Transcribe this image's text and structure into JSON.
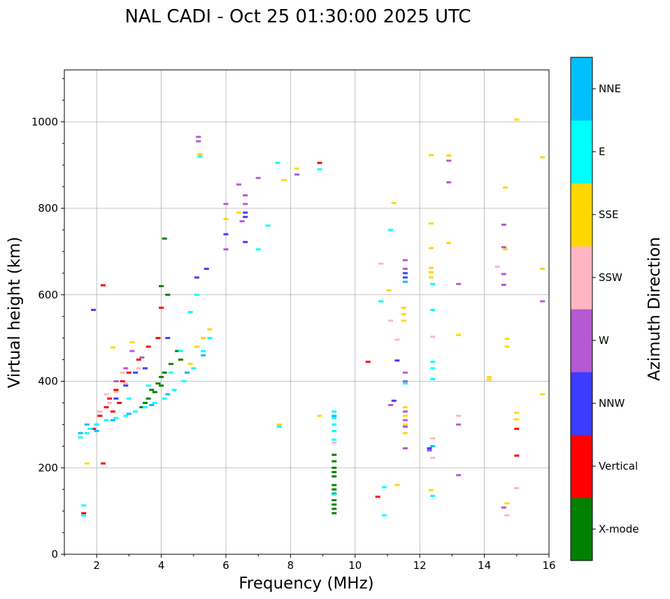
{
  "chart_data": {
    "type": "scatter",
    "title": "NAL CADI - Oct 25 01:30:00 2025 UTC",
    "xlabel": "Frequency (MHz)",
    "ylabel": "Virtual height (km)",
    "xlim": [
      1,
      16
    ],
    "ylim": [
      0,
      1120
    ],
    "x_ticks": [
      2,
      4,
      6,
      8,
      10,
      12,
      14,
      16
    ],
    "y_ticks": [
      0,
      200,
      400,
      600,
      800,
      1000
    ],
    "x_tick_labels": [
      "2",
      "4",
      "6",
      "8",
      "10",
      "12",
      "14",
      "16"
    ],
    "y_tick_labels": [
      "0",
      "200",
      "400",
      "600",
      "800",
      "1000"
    ],
    "grid": true,
    "colorbar": {
      "label": "Azimuth Direction",
      "categories": [
        "X-mode",
        "Vertical",
        "NNW",
        "W",
        "SSW",
        "SSE",
        "E",
        "NNE"
      ],
      "colors": [
        "#008000",
        "#ff0000",
        "#3c3cff",
        "#b45ad2",
        "#ffb6c1",
        "#ffd700",
        "#00ffff",
        "#00bfff"
      ]
    },
    "series": [
      {
        "name": "X-mode",
        "points": [
          [
            9.35,
            95
          ],
          [
            9.35,
            105
          ],
          [
            9.35,
            115
          ],
          [
            9.35,
            125
          ],
          [
            9.35,
            140
          ],
          [
            9.35,
            150
          ],
          [
            9.35,
            160
          ],
          [
            9.35,
            180
          ],
          [
            9.35,
            190
          ],
          [
            9.35,
            200
          ],
          [
            9.35,
            215
          ],
          [
            9.35,
            230
          ],
          [
            3.5,
            350
          ],
          [
            3.6,
            360
          ],
          [
            3.8,
            375
          ],
          [
            4.0,
            390
          ],
          [
            4.0,
            410
          ],
          [
            4.1,
            420
          ],
          [
            4.3,
            440
          ],
          [
            4.2,
            600
          ],
          [
            4.1,
            730
          ],
          [
            4.0,
            620
          ],
          [
            4.5,
            470
          ],
          [
            4.6,
            450
          ],
          [
            4.8,
            420
          ],
          [
            3.4,
            340
          ],
          [
            3.7,
            380
          ],
          [
            3.9,
            395
          ]
        ]
      },
      {
        "name": "Vertical",
        "points": [
          [
            1.6,
            95
          ],
          [
            2.2,
            210
          ],
          [
            2.2,
            622
          ],
          [
            10.7,
            133
          ],
          [
            10.4,
            445
          ],
          [
            15.0,
            290
          ],
          [
            15.0,
            228
          ],
          [
            1.9,
            290
          ],
          [
            2.0,
            300
          ],
          [
            2.1,
            320
          ],
          [
            2.3,
            340
          ],
          [
            2.4,
            360
          ],
          [
            2.6,
            380
          ],
          [
            2.8,
            400
          ],
          [
            3.0,
            420
          ],
          [
            3.3,
            450
          ],
          [
            3.6,
            480
          ],
          [
            3.9,
            500
          ],
          [
            2.5,
            330
          ],
          [
            2.7,
            350
          ],
          [
            4.0,
            570
          ],
          [
            8.9,
            905
          ]
        ]
      },
      {
        "name": "NNW",
        "points": [
          [
            1.9,
            565
          ],
          [
            6.6,
            790
          ],
          [
            6.6,
            780
          ],
          [
            6.0,
            740
          ],
          [
            6.6,
            722
          ],
          [
            11.55,
            650
          ],
          [
            11.55,
            640
          ],
          [
            12.3,
            245
          ],
          [
            11.2,
            355
          ],
          [
            11.3,
            448
          ],
          [
            2.6,
            360
          ],
          [
            2.9,
            390
          ],
          [
            3.2,
            420
          ],
          [
            3.5,
            430
          ],
          [
            4.2,
            500
          ],
          [
            5.1,
            640
          ],
          [
            5.4,
            660
          ]
        ]
      },
      {
        "name": "W",
        "points": [
          [
            5.15,
            965
          ],
          [
            5.15,
            955
          ],
          [
            6.4,
            855
          ],
          [
            6.6,
            830
          ],
          [
            6.6,
            810
          ],
          [
            6.0,
            810
          ],
          [
            6.5,
            770
          ],
          [
            6.0,
            705
          ],
          [
            7.0,
            870
          ],
          [
            8.2,
            878
          ],
          [
            11.55,
            680
          ],
          [
            11.55,
            660
          ],
          [
            11.55,
            420
          ],
          [
            11.55,
            400
          ],
          [
            11.55,
            330
          ],
          [
            11.55,
            310
          ],
          [
            11.55,
            295
          ],
          [
            11.55,
            245
          ],
          [
            12.3,
            240
          ],
          [
            12.9,
            910
          ],
          [
            12.9,
            860
          ],
          [
            13.2,
            625
          ],
          [
            13.2,
            300
          ],
          [
            13.2,
            183
          ],
          [
            14.6,
            762
          ],
          [
            14.6,
            710
          ],
          [
            14.6,
            648
          ],
          [
            14.6,
            623
          ],
          [
            14.6,
            108
          ],
          [
            15.8,
            585
          ],
          [
            11.1,
            345
          ],
          [
            2.6,
            400
          ],
          [
            2.9,
            430
          ],
          [
            3.1,
            470
          ],
          [
            3.4,
            455
          ]
        ]
      },
      {
        "name": "SSW",
        "points": [
          [
            10.8,
            672
          ],
          [
            11.1,
            540
          ],
          [
            11.3,
            496
          ],
          [
            12.4,
            503
          ],
          [
            12.4,
            268
          ],
          [
            12.4,
            223
          ],
          [
            13.2,
            320
          ],
          [
            14.4,
            665
          ],
          [
            15.0,
            153
          ],
          [
            14.7,
            90
          ],
          [
            9.35,
            258
          ],
          [
            2.1,
            330
          ],
          [
            2.4,
            350
          ],
          [
            2.6,
            375
          ],
          [
            2.9,
            395
          ],
          [
            3.3,
            430
          ],
          [
            2.3,
            370
          ],
          [
            2.8,
            420
          ]
        ]
      },
      {
        "name": "SSE",
        "points": [
          [
            1.7,
            210
          ],
          [
            2.5,
            478
          ],
          [
            3.1,
            490
          ],
          [
            5.2,
            925
          ],
          [
            6.0,
            775
          ],
          [
            6.4,
            790
          ],
          [
            7.8,
            865
          ],
          [
            8.2,
            892
          ],
          [
            8.9,
            320
          ],
          [
            11.05,
            610
          ],
          [
            11.2,
            812
          ],
          [
            11.5,
            570
          ],
          [
            11.5,
            555
          ],
          [
            11.5,
            540
          ],
          [
            11.55,
            340
          ],
          [
            11.55,
            320
          ],
          [
            11.55,
            300
          ],
          [
            11.55,
            280
          ],
          [
            11.3,
            160
          ],
          [
            12.35,
            923
          ],
          [
            12.35,
            765
          ],
          [
            12.35,
            708
          ],
          [
            12.35,
            662
          ],
          [
            12.35,
            652
          ],
          [
            12.35,
            640
          ],
          [
            12.35,
            148
          ],
          [
            12.9,
            922
          ],
          [
            12.9,
            720
          ],
          [
            13.2,
            507
          ],
          [
            14.15,
            410
          ],
          [
            14.15,
            404
          ],
          [
            14.65,
            848
          ],
          [
            14.65,
            705
          ],
          [
            14.7,
            498
          ],
          [
            14.7,
            480
          ],
          [
            14.7,
            118
          ],
          [
            15.0,
            1005
          ],
          [
            15.0,
            327
          ],
          [
            15.0,
            312
          ],
          [
            15.8,
            918
          ],
          [
            15.8,
            660
          ],
          [
            15.8,
            370
          ],
          [
            7.65,
            300
          ],
          [
            4.9,
            440
          ],
          [
            5.1,
            480
          ],
          [
            5.3,
            500
          ],
          [
            5.5,
            520
          ]
        ]
      },
      {
        "name": "E",
        "points": [
          [
            1.6,
            113
          ],
          [
            1.6,
            90
          ],
          [
            1.5,
            270
          ],
          [
            1.7,
            280
          ],
          [
            1.8,
            290
          ],
          [
            2.0,
            300
          ],
          [
            2.3,
            310
          ],
          [
            2.6,
            315
          ],
          [
            2.9,
            320
          ],
          [
            3.2,
            330
          ],
          [
            3.5,
            340
          ],
          [
            3.8,
            350
          ],
          [
            4.1,
            360
          ],
          [
            4.4,
            380
          ],
          [
            4.7,
            400
          ],
          [
            5.0,
            430
          ],
          [
            5.3,
            470
          ],
          [
            5.5,
            500
          ],
          [
            4.9,
            560
          ],
          [
            5.1,
            600
          ],
          [
            5.2,
            920
          ],
          [
            7.6,
            905
          ],
          [
            7.3,
            760
          ],
          [
            7.0,
            705
          ],
          [
            8.9,
            890
          ],
          [
            9.35,
            330
          ],
          [
            9.35,
            315
          ],
          [
            9.35,
            300
          ],
          [
            9.35,
            285
          ],
          [
            9.35,
            265
          ],
          [
            9.35,
            138
          ],
          [
            10.8,
            585
          ],
          [
            11.1,
            750
          ],
          [
            10.9,
            90
          ],
          [
            10.9,
            155
          ],
          [
            11.55,
            395
          ],
          [
            12.4,
            625
          ],
          [
            12.4,
            565
          ],
          [
            12.4,
            445
          ],
          [
            12.4,
            430
          ],
          [
            12.4,
            405
          ],
          [
            12.4,
            135
          ],
          [
            7.65,
            295
          ],
          [
            3.0,
            360
          ],
          [
            3.6,
            390
          ],
          [
            4.3,
            420
          ],
          [
            4.6,
            470
          ]
        ]
      },
      {
        "name": "NNE",
        "points": [
          [
            1.5,
            280
          ],
          [
            1.7,
            300
          ],
          [
            2.0,
            285
          ],
          [
            2.5,
            310
          ],
          [
            3.0,
            325
          ],
          [
            3.7,
            345
          ],
          [
            4.2,
            370
          ],
          [
            4.8,
            420
          ],
          [
            5.3,
            460
          ],
          [
            9.35,
            320
          ],
          [
            11.55,
            630
          ],
          [
            12.4,
            250
          ]
        ]
      }
    ]
  }
}
